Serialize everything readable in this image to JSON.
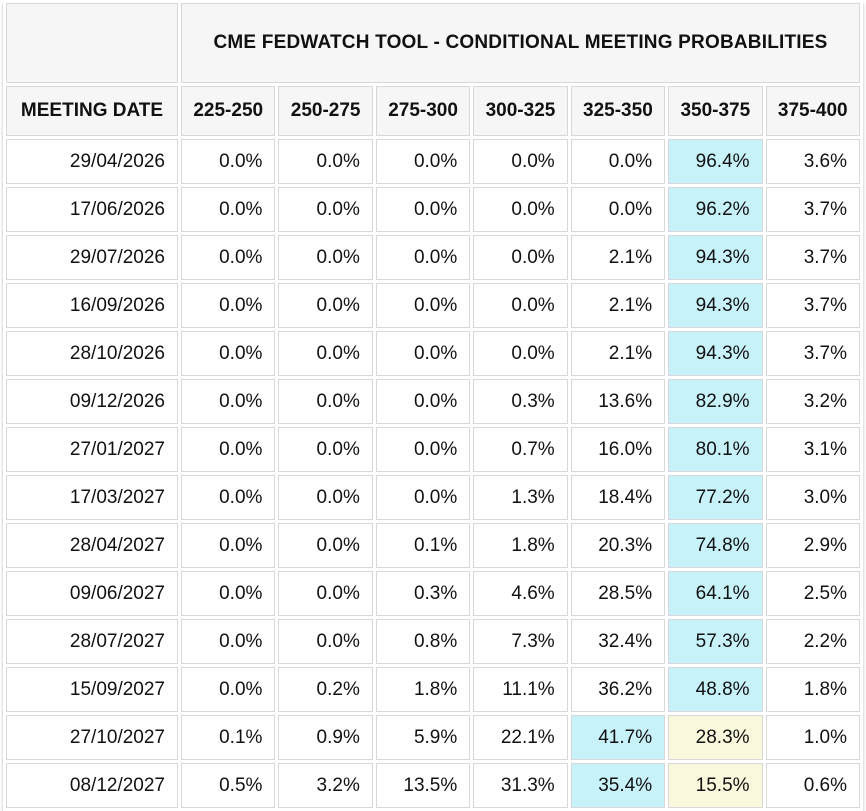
{
  "chart_data": {
    "type": "table",
    "title": "CME FEDWATCH TOOL - CONDITIONAL MEETING PROBABILITIES",
    "row_header_label": "MEETING DATE",
    "columns": [
      "225-250",
      "250-275",
      "275-300",
      "300-325",
      "325-350",
      "350-375",
      "375-400"
    ],
    "rows": [
      {
        "date": "29/04/2026",
        "values": [
          "0.0%",
          "0.0%",
          "0.0%",
          "0.0%",
          "0.0%",
          "96.4%",
          "3.6%"
        ],
        "cyan": 5,
        "yellow": null
      },
      {
        "date": "17/06/2026",
        "values": [
          "0.0%",
          "0.0%",
          "0.0%",
          "0.0%",
          "0.0%",
          "96.2%",
          "3.7%"
        ],
        "cyan": 5,
        "yellow": null
      },
      {
        "date": "29/07/2026",
        "values": [
          "0.0%",
          "0.0%",
          "0.0%",
          "0.0%",
          "2.1%",
          "94.3%",
          "3.7%"
        ],
        "cyan": 5,
        "yellow": null
      },
      {
        "date": "16/09/2026",
        "values": [
          "0.0%",
          "0.0%",
          "0.0%",
          "0.0%",
          "2.1%",
          "94.3%",
          "3.7%"
        ],
        "cyan": 5,
        "yellow": null
      },
      {
        "date": "28/10/2026",
        "values": [
          "0.0%",
          "0.0%",
          "0.0%",
          "0.0%",
          "2.1%",
          "94.3%",
          "3.7%"
        ],
        "cyan": 5,
        "yellow": null
      },
      {
        "date": "09/12/2026",
        "values": [
          "0.0%",
          "0.0%",
          "0.0%",
          "0.3%",
          "13.6%",
          "82.9%",
          "3.2%"
        ],
        "cyan": 5,
        "yellow": null
      },
      {
        "date": "27/01/2027",
        "values": [
          "0.0%",
          "0.0%",
          "0.0%",
          "0.7%",
          "16.0%",
          "80.1%",
          "3.1%"
        ],
        "cyan": 5,
        "yellow": null
      },
      {
        "date": "17/03/2027",
        "values": [
          "0.0%",
          "0.0%",
          "0.0%",
          "1.3%",
          "18.4%",
          "77.2%",
          "3.0%"
        ],
        "cyan": 5,
        "yellow": null
      },
      {
        "date": "28/04/2027",
        "values": [
          "0.0%",
          "0.0%",
          "0.1%",
          "1.8%",
          "20.3%",
          "74.8%",
          "2.9%"
        ],
        "cyan": 5,
        "yellow": null
      },
      {
        "date": "09/06/2027",
        "values": [
          "0.0%",
          "0.0%",
          "0.3%",
          "4.6%",
          "28.5%",
          "64.1%",
          "2.5%"
        ],
        "cyan": 5,
        "yellow": null
      },
      {
        "date": "28/07/2027",
        "values": [
          "0.0%",
          "0.0%",
          "0.8%",
          "7.3%",
          "32.4%",
          "57.3%",
          "2.2%"
        ],
        "cyan": 5,
        "yellow": null
      },
      {
        "date": "15/09/2027",
        "values": [
          "0.0%",
          "0.2%",
          "1.8%",
          "11.1%",
          "36.2%",
          "48.8%",
          "1.8%"
        ],
        "cyan": 5,
        "yellow": null
      },
      {
        "date": "27/10/2027",
        "values": [
          "0.1%",
          "0.9%",
          "5.9%",
          "22.1%",
          "41.7%",
          "28.3%",
          "1.0%"
        ],
        "cyan": 4,
        "yellow": 5
      },
      {
        "date": "08/12/2027",
        "values": [
          "0.5%",
          "3.2%",
          "13.5%",
          "31.3%",
          "35.4%",
          "15.5%",
          "0.6%"
        ],
        "cyan": 4,
        "yellow": 5
      }
    ]
  },
  "colors": {
    "highlight_cyan": "#c8f2f9",
    "highlight_yellow": "#f9f7dc",
    "header_bg": "#f6f6f6",
    "grid_line": "#d8d8d8"
  }
}
